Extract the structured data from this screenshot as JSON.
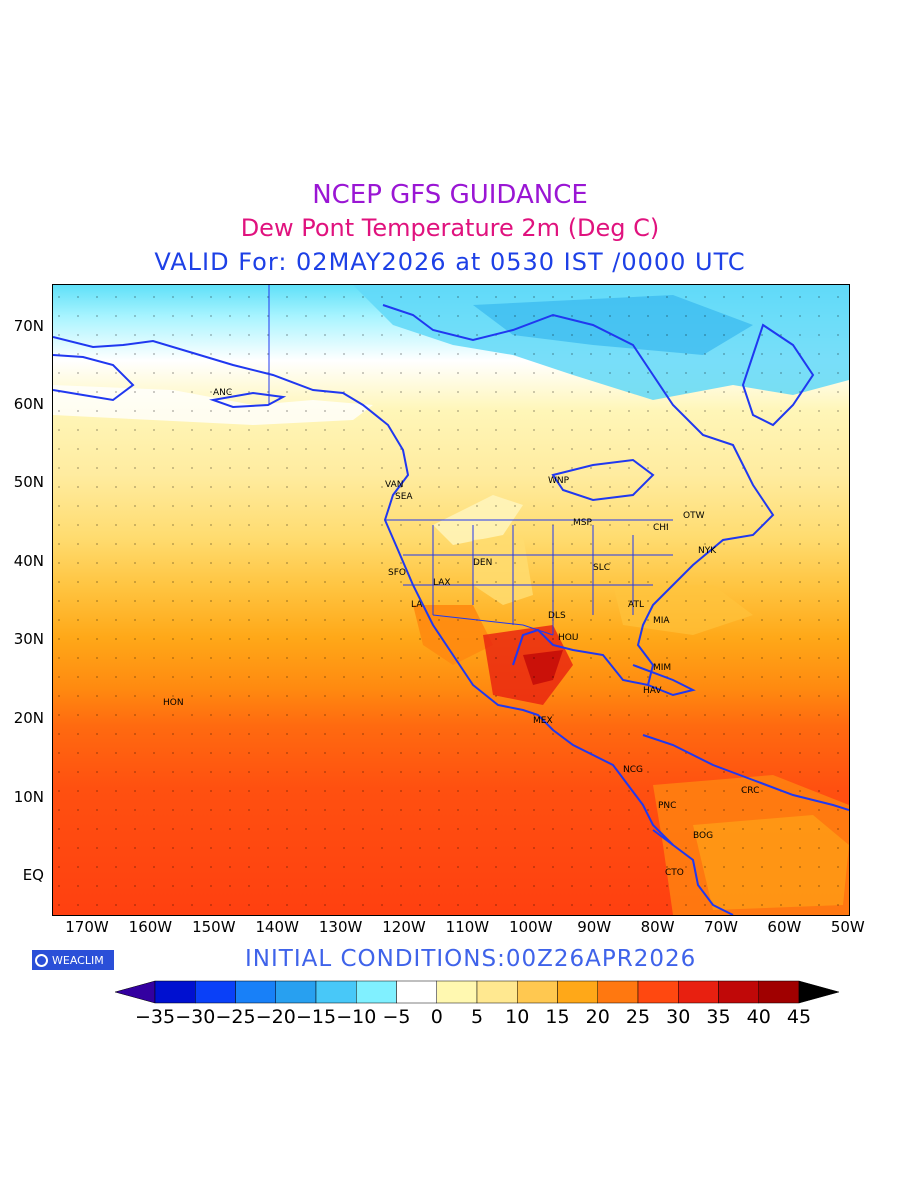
{
  "title": "NCEP GFS GUIDANCE",
  "subtitle": "Dew Pont Temperature 2m (Deg C)",
  "valid_line": "VALID For: 02MAY2026 at 0530 IST /0000 UTC",
  "initial_conditions": "INITIAL CONDITIONS:00Z26APR2026",
  "logo_text": "WEACLIM",
  "lat_labels": [
    "70N",
    "60N",
    "50N",
    "40N",
    "30N",
    "20N",
    "10N",
    "EQ"
  ],
  "lon_labels": [
    "170W",
    "160W",
    "150W",
    "140W",
    "130W",
    "120W",
    "110W",
    "100W",
    "90W",
    "80W",
    "70W",
    "60W",
    "50W"
  ],
  "colorbar": {
    "labels": [
      "−35",
      "−30",
      "−25",
      "−20",
      "−15",
      "−10",
      "−5",
      "0",
      "5",
      "10",
      "15",
      "20",
      "25",
      "30",
      "35",
      "40",
      "45"
    ],
    "colors": [
      "#3300a0",
      "#0010d0",
      "#0a40f8",
      "#1880f8",
      "#28a0f0",
      "#48c8f8",
      "#80f0ff",
      "#ffffff",
      "#fff8b0",
      "#ffe890",
      "#ffc850",
      "#ffa818",
      "#ff7810",
      "#ff4810",
      "#e82010",
      "#c00808",
      "#a00000",
      "#000000"
    ]
  },
  "map": {
    "station_labels": [
      "ANC",
      "VAN",
      "SEA",
      "SFO",
      "LAX",
      "LA",
      "DEN",
      "SLC",
      "WNP",
      "MSP",
      "OTW",
      "CHI",
      "NYK",
      "DLS",
      "HOU",
      "ATL",
      "MIA",
      "HAV",
      "MEX",
      "MIM",
      "NCG",
      "PNC",
      "CRC",
      "BOG",
      "CTO",
      "HON"
    ]
  }
}
